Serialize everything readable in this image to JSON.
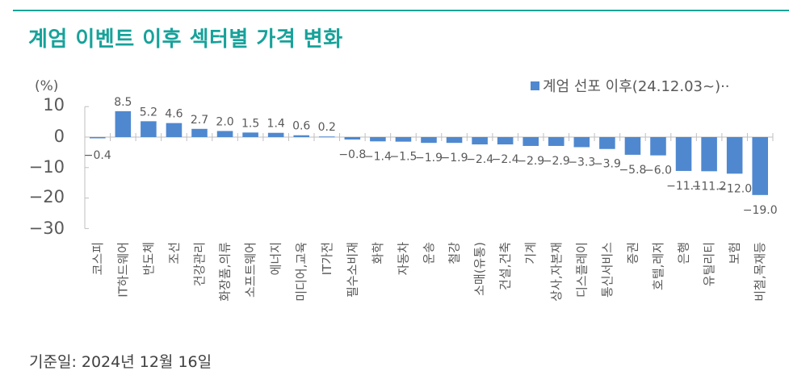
{
  "title": "계엄 이벤트 이후 섹터별 가격 변화",
  "unit_label": "(%)",
  "legend": {
    "label": "계엄 선포 이후(24.12.03~)··",
    "color": "#4f88cf"
  },
  "footer": "기준일: 2024년 12월 16일",
  "colors": {
    "accent": "#17a29a",
    "bar": "#4f88cf",
    "axis": "#bfbfbf",
    "text": "#595959"
  },
  "y_axis": {
    "ticks": [
      "10",
      "0",
      "−10",
      "−20",
      "−30"
    ]
  },
  "chart_data": {
    "type": "bar",
    "title": "계엄 이벤트 이후 섹터별 가격 변화",
    "xlabel": "",
    "ylabel": "(%)",
    "ylim": [
      -30,
      10
    ],
    "yticks": [
      10,
      0,
      -10,
      -20,
      -30
    ],
    "grid": false,
    "legend_position": "top-right",
    "series": [
      {
        "name": "계엄 선포 이후(24.12.03~)··",
        "values": [
          -0.4,
          8.5,
          5.2,
          4.6,
          2.7,
          2.0,
          1.5,
          1.4,
          0.6,
          0.2,
          -0.8,
          -1.4,
          -1.5,
          -1.9,
          -1.9,
          -2.4,
          -2.4,
          -2.9,
          -2.9,
          -3.3,
          -3.9,
          -5.8,
          -6.0,
          -11.1,
          -11.2,
          -12.0,
          -19.0
        ]
      }
    ],
    "categories": [
      "코스피",
      "IT하드웨어",
      "반도체",
      "조선",
      "건강관리",
      "화장품,의류",
      "소프트웨어",
      "에너지",
      "미디어,교육",
      "IT가전",
      "필수소비재",
      "화학",
      "자동차",
      "운송",
      "철강",
      "소매(유통)",
      "건설,건축",
      "기계",
      "상사,자본재",
      "디스플레이",
      "통신서비스",
      "증권",
      "호텔,레저",
      "은행",
      "유틸리티",
      "보험",
      "비철,목재등"
    ],
    "data_labels": [
      "-0.4",
      "8.5",
      "5.2",
      "4.6",
      "2.7",
      "2.0",
      "1.5",
      "1.4",
      "0.6",
      "0.2",
      "-0.8",
      "-1.4",
      "-1.5",
      "-1.9",
      "-1.9",
      "-2.4",
      "-2.4",
      "-2.9",
      "-2.9",
      "-3.3",
      "-3.9",
      "-5.8",
      "-6.0",
      "-11.1",
      "-11.2",
      "-12.0",
      "-19.0"
    ]
  }
}
